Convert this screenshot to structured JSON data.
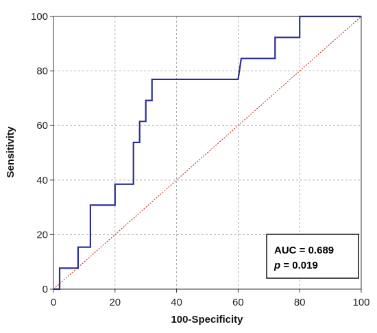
{
  "chart_data": {
    "type": "line",
    "xlabel": "100-Specificity",
    "ylabel": "Sensitivity",
    "xlim": [
      0,
      100
    ],
    "ylim": [
      0,
      100
    ],
    "xticks": [
      0,
      20,
      40,
      60,
      80,
      100
    ],
    "yticks": [
      0,
      20,
      40,
      60,
      80,
      100
    ],
    "grid": true,
    "series": [
      {
        "kind": "step",
        "color": "#2b2d9a",
        "x": [
          0,
          2,
          2,
          8,
          8,
          12,
          12,
          20,
          20,
          26,
          26,
          28,
          28,
          30,
          30,
          32,
          32,
          60,
          61,
          72,
          72,
          80,
          80,
          100
        ],
        "y": [
          0,
          0,
          7.7,
          7.7,
          15.4,
          15.4,
          30.8,
          30.8,
          38.5,
          38.5,
          53.8,
          53.8,
          61.5,
          61.5,
          69.2,
          69.2,
          76.9,
          76.9,
          84.6,
          84.6,
          92.3,
          92.3,
          100,
          100
        ]
      },
      {
        "kind": "reference",
        "color": "#c0392b",
        "x": [
          0,
          100
        ],
        "y": [
          0,
          100
        ]
      }
    ],
    "annotation": {
      "auc_label": "AUC = 0.689",
      "p_symbol": "p",
      "p_rest": " = 0.019",
      "placement": "bottom-right"
    }
  }
}
